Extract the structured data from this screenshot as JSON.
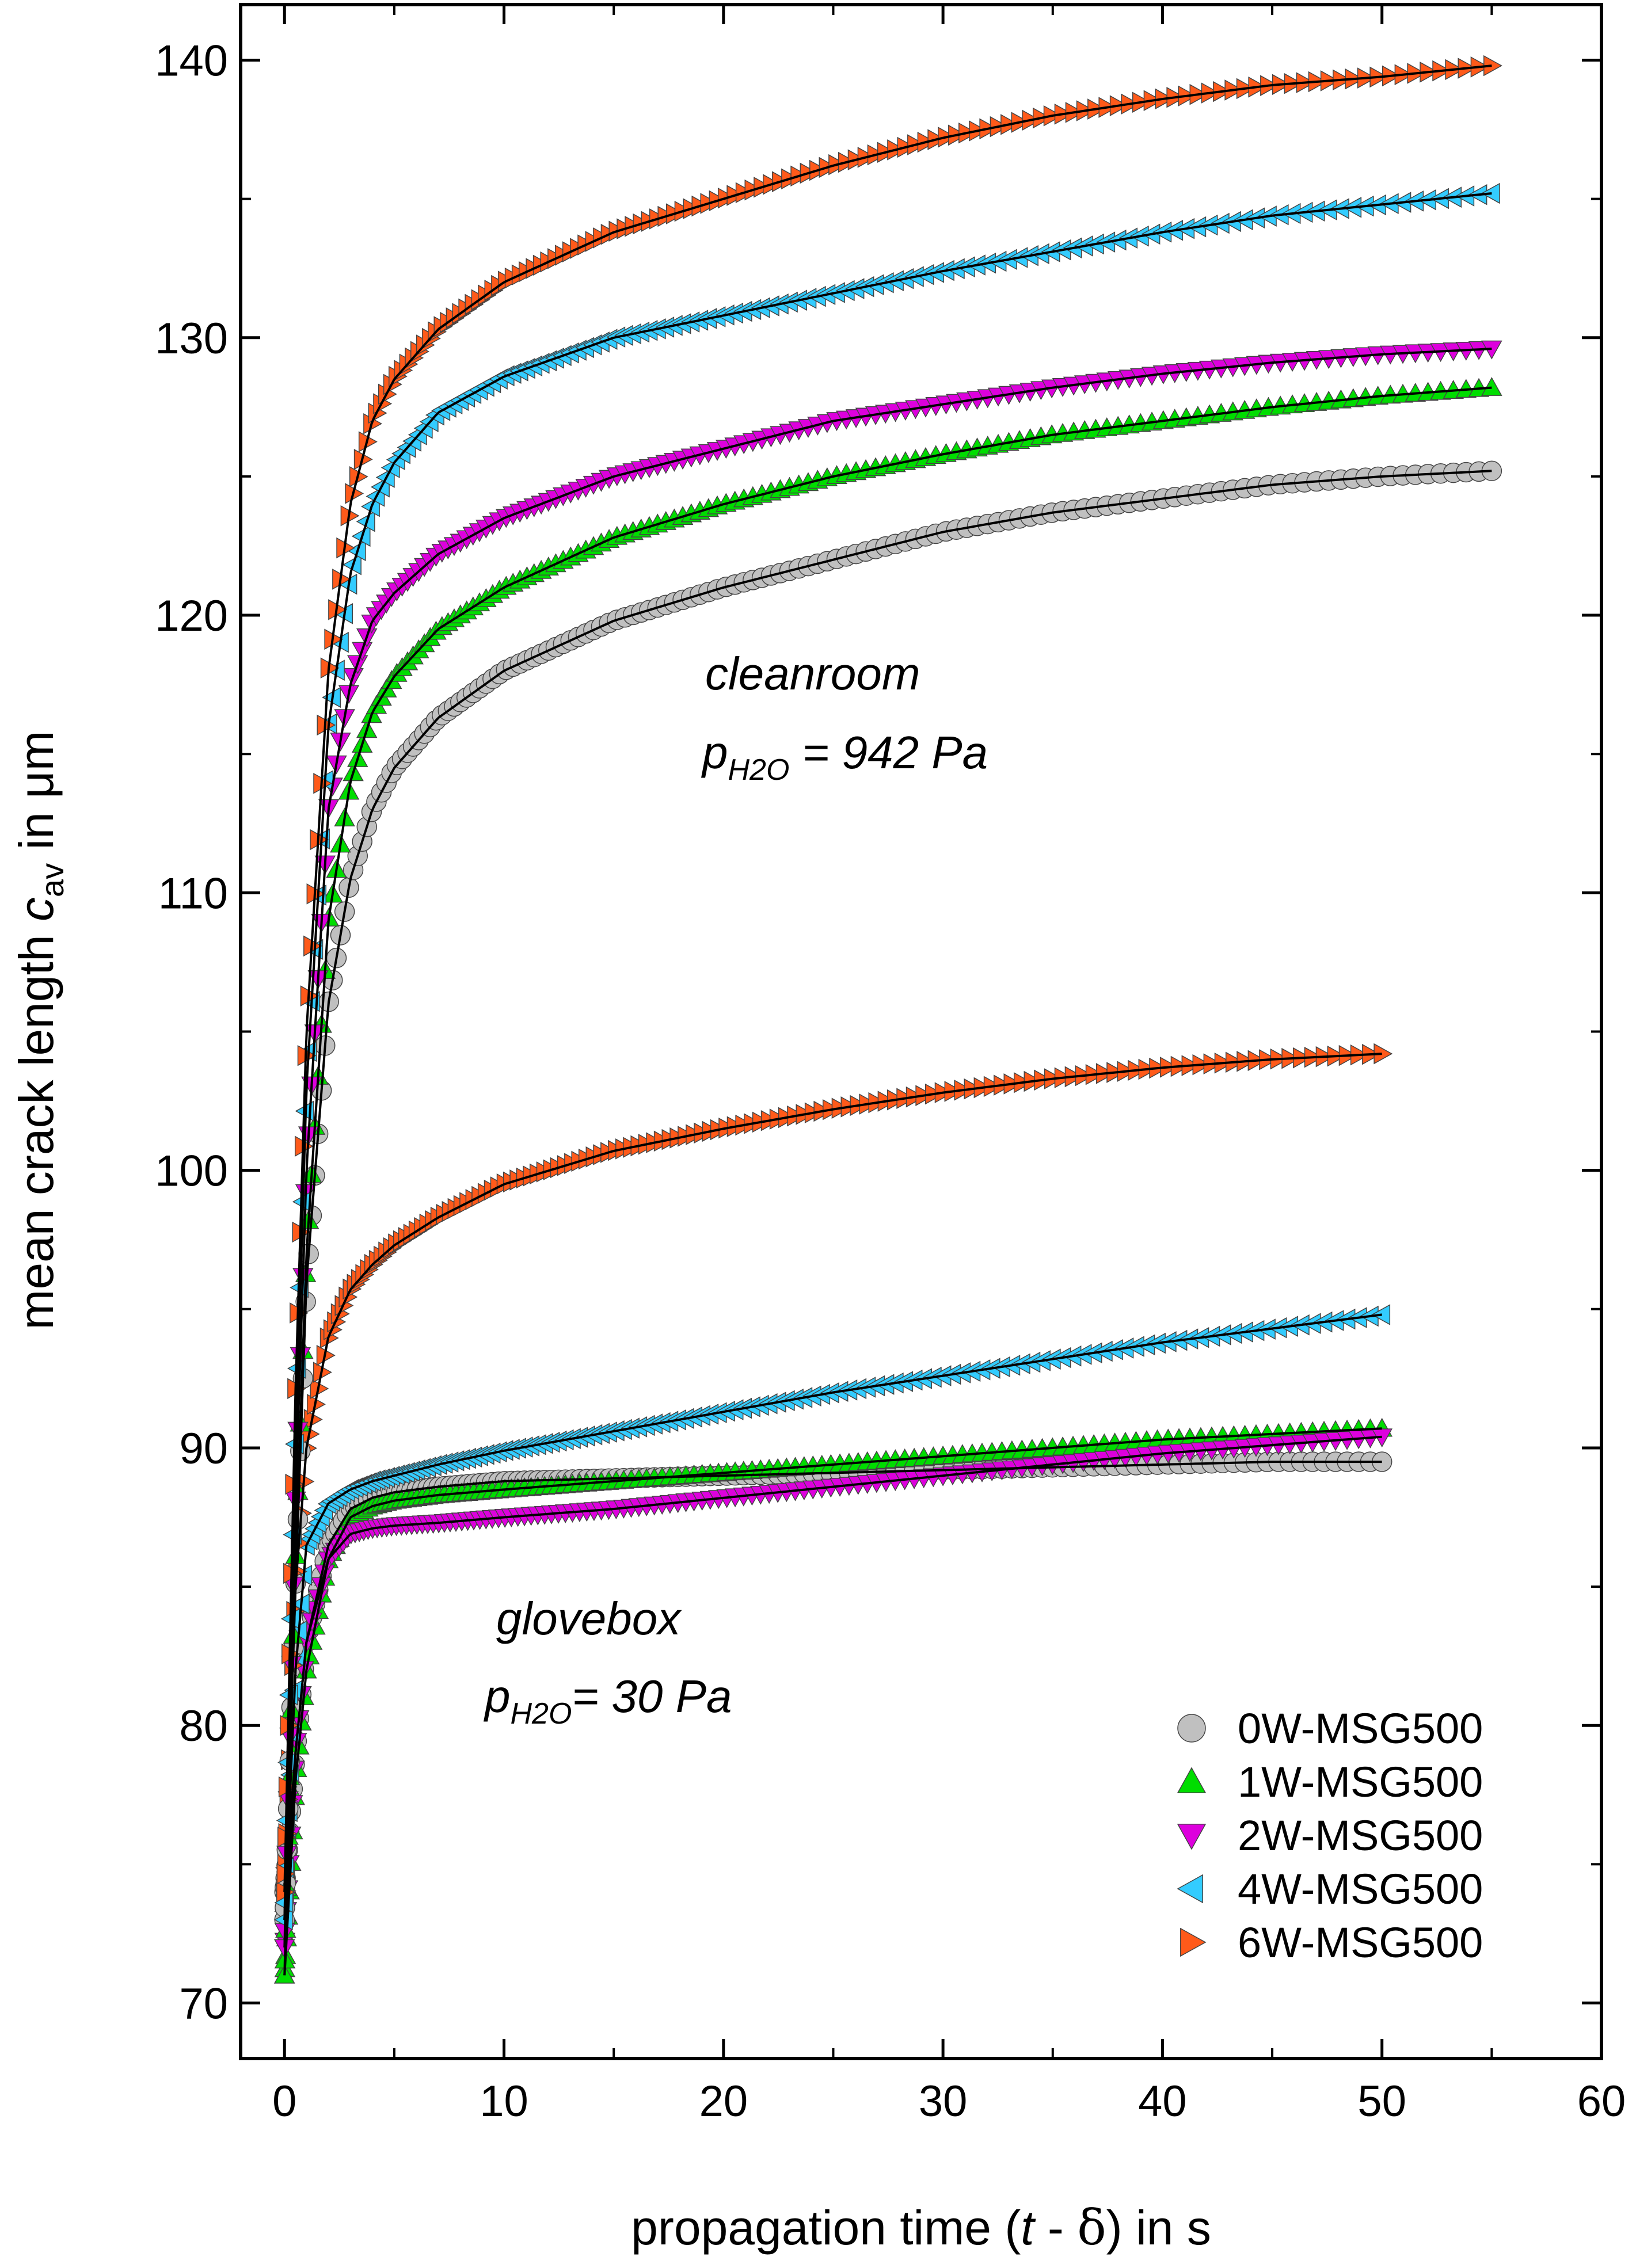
{
  "chart_data": {
    "type": "scatter",
    "xlabel": {
      "prefix": "propagation time (",
      "var": "t",
      "minus": " - ",
      "delta": "δ",
      "suffix": ") in s"
    },
    "ylabel": {
      "prefix": "mean crack length ",
      "var": "c",
      "sub": "av",
      "suffix": " in μm"
    },
    "xlim": [
      -2,
      60
    ],
    "ylim": [
      68,
      142
    ],
    "xticks": [
      0,
      10,
      20,
      30,
      40,
      50,
      60
    ],
    "yticks": [
      70,
      80,
      90,
      100,
      110,
      120,
      130,
      140
    ],
    "grid": false,
    "legend_position": "bottom-right",
    "annotations": {
      "cleanroom": {
        "name": "cleanroom",
        "p_label": "p",
        "p_sub": "H2O",
        "p_value": " = 942 Pa"
      },
      "glovebox": {
        "name": "glovebox",
        "p_label": "p",
        "p_sub": "H2O",
        "p_value": "= 30 Pa"
      }
    },
    "marker_styles": {
      "0W-MSG500": {
        "shape": "circle",
        "color": "#c0c0c0"
      },
      "1W-MSG500": {
        "shape": "triangle-up",
        "color": "#00dd00"
      },
      "2W-MSG500": {
        "shape": "triangle-down",
        "color": "#dd00dd"
      },
      "4W-MSG500": {
        "shape": "triangle-left",
        "color": "#33ccff"
      },
      "6W-MSG500": {
        "shape": "triangle-right",
        "color": "#ff5a1a"
      }
    },
    "legend": [
      "0W-MSG500",
      "1W-MSG500",
      "2W-MSG500",
      "4W-MSG500",
      "6W-MSG500"
    ],
    "fit_line_color": "#000000",
    "series": [
      {
        "name": "0W-MSG500",
        "condition": "cleanroom",
        "x": [
          0,
          0.5,
          1,
          2,
          3,
          4,
          5,
          7,
          10,
          15,
          20,
          25,
          30,
          35,
          40,
          45,
          50,
          55
        ],
        "y": [
          73,
          85,
          96,
          106,
          110.5,
          113,
          114.5,
          116.3,
          118.0,
          119.8,
          121.0,
          122.0,
          123.0,
          123.7,
          124.2,
          124.7,
          125.0,
          125.2
        ]
      },
      {
        "name": "1W-MSG500",
        "condition": "cleanroom",
        "x": [
          0,
          0.5,
          1,
          2,
          3,
          4,
          5,
          7,
          10,
          15,
          20,
          25,
          30,
          35,
          40,
          45,
          50,
          55
        ],
        "y": [
          71,
          86,
          97,
          109,
          114,
          116.5,
          117.8,
          119.5,
          121.0,
          122.8,
          124.0,
          125.0,
          125.8,
          126.5,
          127.0,
          127.5,
          127.9,
          128.2
        ]
      },
      {
        "name": "2W-MSG500",
        "condition": "cleanroom",
        "x": [
          0,
          0.5,
          1,
          2,
          3,
          4,
          5,
          7,
          10,
          15,
          20,
          25,
          30,
          35,
          40,
          45,
          50,
          55
        ],
        "y": [
          72,
          88,
          100,
          113,
          117.5,
          119.8,
          120.8,
          122.2,
          123.5,
          125.0,
          126.0,
          127.0,
          127.6,
          128.2,
          128.7,
          129.1,
          129.4,
          129.6
        ]
      },
      {
        "name": "4W-MSG500",
        "condition": "cleanroom",
        "x": [
          0,
          0.5,
          1,
          2,
          3,
          4,
          5,
          7,
          10,
          15,
          20,
          25,
          30,
          35,
          40,
          45,
          50,
          55
        ],
        "y": [
          73,
          90,
          103,
          116,
          121.5,
          124,
          125.5,
          127.3,
          128.6,
          130.0,
          130.8,
          131.6,
          132.4,
          133.1,
          133.8,
          134.4,
          134.8,
          135.2
        ]
      },
      {
        "name": "6W-MSG500",
        "condition": "cleanroom",
        "x": [
          0,
          0.5,
          1,
          2,
          3,
          4,
          5,
          7,
          10,
          15,
          20,
          25,
          30,
          35,
          40,
          45,
          50,
          55
        ],
        "y": [
          74,
          92,
          105,
          118,
          124,
          127,
          128.5,
          130.3,
          132.0,
          133.8,
          135.0,
          136.2,
          137.2,
          138.0,
          138.6,
          139.1,
          139.4,
          139.8
        ]
      },
      {
        "name": "0W-MSG500",
        "condition": "glovebox",
        "x": [
          0,
          0.5,
          1,
          2,
          3,
          4,
          5,
          7,
          10,
          15,
          20,
          25,
          30,
          35,
          40,
          45,
          50
        ],
        "y": [
          74,
          79,
          83,
          86.5,
          87.8,
          88.2,
          88.4,
          88.6,
          88.8,
          88.9,
          89.0,
          89.1,
          89.2,
          89.3,
          89.4,
          89.5,
          89.5
        ]
      },
      {
        "name": "1W-MSG500",
        "condition": "glovebox",
        "x": [
          0,
          0.5,
          1,
          2,
          3,
          4,
          5,
          7,
          10,
          15,
          20,
          25,
          30,
          35,
          40,
          45,
          50
        ],
        "y": [
          71,
          78,
          82,
          86,
          87.5,
          87.9,
          88.1,
          88.3,
          88.5,
          88.8,
          89.1,
          89.4,
          89.7,
          90.0,
          90.3,
          90.5,
          90.7
        ]
      },
      {
        "name": "2W-MSG500",
        "condition": "glovebox",
        "x": [
          0,
          0.5,
          1,
          2,
          3,
          4,
          5,
          7,
          10,
          15,
          20,
          25,
          30,
          35,
          40,
          45,
          50
        ],
        "y": [
          72,
          79,
          83,
          86,
          86.9,
          87.1,
          87.2,
          87.3,
          87.5,
          87.8,
          88.2,
          88.6,
          89.0,
          89.4,
          89.8,
          90.1,
          90.4
        ]
      },
      {
        "name": "4W-MSG500",
        "condition": "glovebox",
        "x": [
          0,
          0.5,
          1,
          2,
          3,
          4,
          5,
          7,
          10,
          15,
          20,
          25,
          30,
          35,
          40,
          45,
          50
        ],
        "y": [
          73,
          82,
          86.5,
          88,
          88.5,
          88.8,
          89.0,
          89.4,
          89.9,
          90.6,
          91.3,
          92.0,
          92.6,
          93.2,
          93.8,
          94.3,
          94.8
        ]
      },
      {
        "name": "6W-MSG500",
        "condition": "glovebox",
        "x": [
          0,
          0.5,
          1,
          2,
          3,
          4,
          5,
          7,
          10,
          15,
          20,
          25,
          30,
          35,
          40,
          45,
          50
        ],
        "y": [
          74,
          85,
          90,
          94,
          95.7,
          96.6,
          97.3,
          98.3,
          99.5,
          100.7,
          101.5,
          102.2,
          102.8,
          103.3,
          103.7,
          104.0,
          104.2
        ]
      }
    ]
  }
}
